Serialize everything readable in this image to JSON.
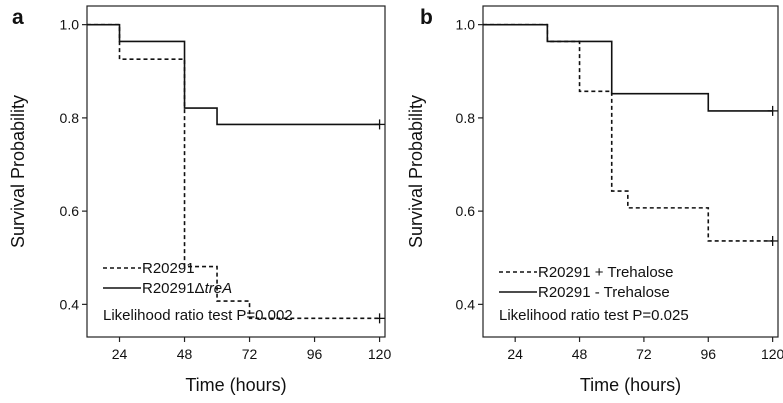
{
  "chart_data": [
    {
      "type": "line",
      "panel_label": "a",
      "xlabel": "Time (hours)",
      "ylabel": "Survival Probability",
      "xlim": [
        12,
        122
      ],
      "ylim": [
        0.33,
        1.04
      ],
      "xticks": [
        24,
        48,
        72,
        96,
        120
      ],
      "yticks": [
        0.4,
        0.6,
        0.8,
        1.0
      ],
      "ytick_labels": [
        "0.4",
        "0.6",
        "0.8",
        "1.0"
      ],
      "grid": false,
      "legend_placement": "bottom-left",
      "series": [
        {
          "name": "R20291",
          "style": "dashed",
          "steps": [
            {
              "x": 12,
              "y": 1.0
            },
            {
              "x": 24,
              "y": 0.926
            },
            {
              "x": 48,
              "y": 0.481
            },
            {
              "x": 60,
              "y": 0.407
            },
            {
              "x": 72,
              "y": 0.37
            },
            {
              "x": 120,
              "y": 0.37
            }
          ],
          "censor": [
            {
              "x": 120,
              "y": 0.37
            }
          ]
        },
        {
          "name_parts": [
            "R20291Δ",
            "treA"
          ],
          "style": "solid",
          "steps": [
            {
              "x": 12,
              "y": 1.0
            },
            {
              "x": 24,
              "y": 0.964
            },
            {
              "x": 48,
              "y": 0.821
            },
            {
              "x": 60,
              "y": 0.786
            },
            {
              "x": 120,
              "y": 0.786
            }
          ],
          "censor": [
            {
              "x": 120,
              "y": 0.786
            }
          ]
        }
      ],
      "annotation": "Likelihood ratio test P=0.002"
    },
    {
      "type": "line",
      "panel_label": "b",
      "xlabel": "Time (hours)",
      "ylabel": "Survival Probability",
      "xlim": [
        12,
        122
      ],
      "ylim": [
        0.33,
        1.04
      ],
      "xticks": [
        24,
        48,
        72,
        96,
        120
      ],
      "yticks": [
        0.4,
        0.6,
        0.8,
        1.0
      ],
      "ytick_labels": [
        "0.4",
        "0.6",
        "0.8",
        "1.0"
      ],
      "grid": false,
      "legend_placement": "bottom-left",
      "series": [
        {
          "name": "R20291 + Trehalose",
          "style": "dashed",
          "steps": [
            {
              "x": 12,
              "y": 1.0
            },
            {
              "x": 36,
              "y": 0.964
            },
            {
              "x": 48,
              "y": 0.857
            },
            {
              "x": 60,
              "y": 0.643
            },
            {
              "x": 66,
              "y": 0.607
            },
            {
              "x": 96,
              "y": 0.536
            },
            {
              "x": 120,
              "y": 0.536
            }
          ],
          "censor": [
            {
              "x": 120,
              "y": 0.536
            }
          ]
        },
        {
          "name": "R20291  - Trehalose",
          "style": "solid",
          "steps": [
            {
              "x": 12,
              "y": 1.0
            },
            {
              "x": 36,
              "y": 0.964
            },
            {
              "x": 60,
              "y": 0.852
            },
            {
              "x": 96,
              "y": 0.815
            },
            {
              "x": 120,
              "y": 0.815
            }
          ],
          "censor": [
            {
              "x": 120,
              "y": 0.815
            }
          ]
        }
      ],
      "annotation": "Likelihood ratio test P=0.025"
    }
  ]
}
